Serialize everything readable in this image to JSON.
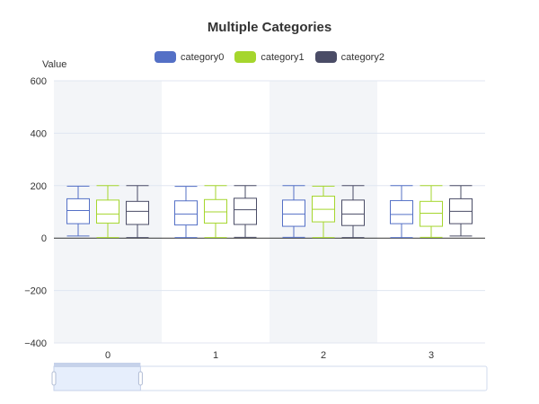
{
  "chart_data": {
    "type": "boxplot",
    "title": "Multiple Categories",
    "ylabel": "Value",
    "xlabel": "",
    "ylim": [
      -400,
      600
    ],
    "yticks": [
      -400,
      -200,
      0,
      200,
      400,
      600
    ],
    "categories": [
      "0",
      "1",
      "2",
      "3"
    ],
    "series": [
      {
        "name": "category0",
        "color": "#5470c6",
        "boxes": [
          {
            "min": 8,
            "q1": 55,
            "median": 105,
            "q3": 150,
            "max": 198
          },
          {
            "min": 2,
            "q1": 50,
            "median": 92,
            "q3": 142,
            "max": 197
          },
          {
            "min": 3,
            "q1": 45,
            "median": 92,
            "q3": 145,
            "max": 200
          },
          {
            "min": 2,
            "q1": 55,
            "median": 90,
            "q3": 143,
            "max": 200
          }
        ]
      },
      {
        "name": "category1",
        "color": "#91cc75",
        "stroke": "#a5d62d",
        "boxes": [
          {
            "min": 2,
            "q1": 57,
            "median": 92,
            "q3": 145,
            "max": 200
          },
          {
            "min": 2,
            "q1": 57,
            "median": 100,
            "q3": 147,
            "max": 200
          },
          {
            "min": 2,
            "q1": 62,
            "median": 110,
            "q3": 160,
            "max": 198
          },
          {
            "min": 3,
            "q1": 45,
            "median": 95,
            "q3": 140,
            "max": 200
          }
        ]
      },
      {
        "name": "category2",
        "color": "#4a4c66",
        "boxes": [
          {
            "min": 2,
            "q1": 52,
            "median": 102,
            "q3": 140,
            "max": 200
          },
          {
            "min": 3,
            "q1": 52,
            "median": 108,
            "q3": 152,
            "max": 200
          },
          {
            "min": 2,
            "q1": 48,
            "median": 92,
            "q3": 145,
            "max": 200
          },
          {
            "min": 8,
            "q1": 55,
            "median": 102,
            "q3": 150,
            "max": 200
          }
        ]
      }
    ],
    "grid": true,
    "split_area": true,
    "legend_position": "top-center",
    "data_zoom": {
      "start_percent": 0,
      "end_percent": 20
    }
  },
  "colors": {
    "split_area_shaded": "#f3f5f8",
    "grid_line": "#e0e6f1",
    "axis_line": "#333333",
    "axis_label": "#333333",
    "zoom_fill": "#e6eefc",
    "zoom_handle": "#c6d2ea"
  }
}
